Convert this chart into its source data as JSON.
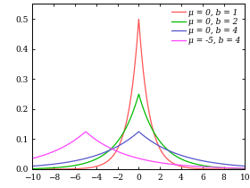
{
  "distributions": [
    {
      "mu": 0,
      "b": 1,
      "color": "#ff5555",
      "label": "μ = 0, b = 1"
    },
    {
      "mu": 0,
      "b": 2,
      "color": "#00bb00",
      "label": "μ = 0, b = 2"
    },
    {
      "mu": 0,
      "b": 4,
      "color": "#5555cc",
      "label": "μ = 0, b = 4"
    },
    {
      "mu": -5,
      "b": 4,
      "color": "#ff44ff",
      "label": "μ = -5, b = 4"
    }
  ],
  "xlim": [
    -10,
    10
  ],
  "ylim": [
    0,
    0.55
  ],
  "xticks": [
    -10,
    -8,
    -6,
    -4,
    -2,
    0,
    2,
    4,
    6,
    8,
    10
  ],
  "yticks": [
    0.0,
    0.1,
    0.2,
    0.3,
    0.4,
    0.5
  ],
  "background_color": "#ffffff",
  "legend_fontsize": 6.5,
  "tick_fontsize": 6.5
}
